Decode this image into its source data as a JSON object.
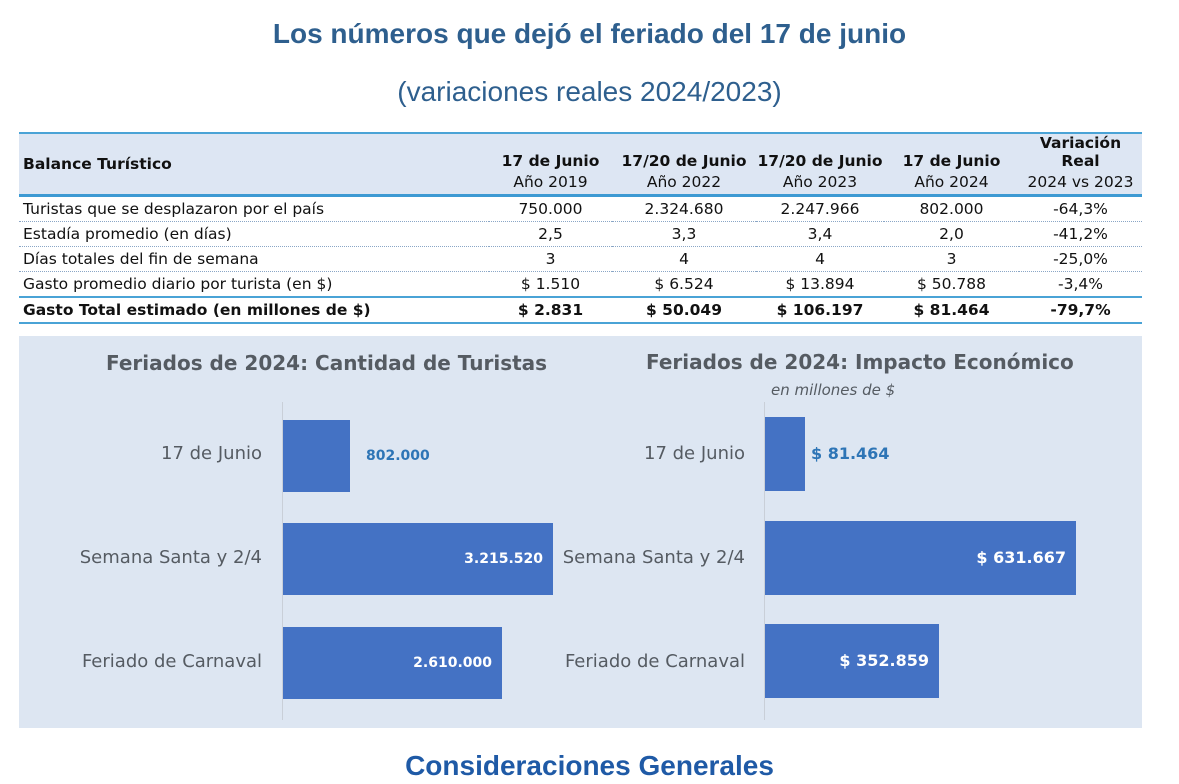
{
  "title": "Los números que dejó el feriado del 17 de junio",
  "subtitle": "(variaciones reales 2024/2023)",
  "table": {
    "row_header": "Balance Turístico",
    "columns": [
      {
        "top": "17 de Junio",
        "bottom": "Año 2019"
      },
      {
        "top": "17/20 de Junio",
        "bottom": "Año 2022"
      },
      {
        "top": "17/20 de Junio",
        "bottom": "Año 2023"
      },
      {
        "top": "17 de Junio",
        "bottom": "Año 2024"
      },
      {
        "top": "Variación Real",
        "bottom": "2024 vs 2023"
      }
    ],
    "rows": [
      {
        "label": "Turistas que se desplazaron por el país",
        "cells": [
          "750.000",
          "2.324.680",
          "2.247.966",
          "802.000",
          "-64,3%"
        ]
      },
      {
        "label": "Estadía promedio (en días)",
        "cells": [
          "2,5",
          "3,3",
          "3,4",
          "2,0",
          "-41,2%"
        ]
      },
      {
        "label": "Días totales del fin de semana",
        "cells": [
          "3",
          "4",
          "4",
          "3",
          "-25,0%"
        ]
      },
      {
        "label": "Gasto promedio diario por turista (en $)",
        "cells": [
          "$ 1.510",
          "$ 6.524",
          "$ 13.894",
          "$ 50.788",
          "-3,4%"
        ]
      },
      {
        "label": "Gasto Total estimado (en millones de $)",
        "cells": [
          "$ 2.831",
          "$ 50.049",
          "$ 106.197",
          "$ 81.464",
          "-79,7%"
        ]
      }
    ]
  },
  "chart_data": [
    {
      "type": "bar",
      "orientation": "horizontal",
      "title": "Feriados de 2024: Cantidad de Turistas",
      "categories": [
        "17 de Junio",
        "Semana Santa y 2/4",
        "Feriado de Carnaval"
      ],
      "values": [
        802000,
        3215520,
        2610000
      ],
      "labels": [
        "802.000",
        "3.215.520",
        "2.610.000"
      ],
      "xlim": [
        0,
        3215520
      ],
      "colors": {
        "bar": "#4472c4",
        "label_inside": "#ffffff",
        "label_outside": "#2e75b6"
      }
    },
    {
      "type": "bar",
      "orientation": "horizontal",
      "title": "Feriados de 2024: Impacto Económico",
      "subtitle": "en millones de $",
      "categories": [
        "17 de Junio",
        "Semana Santa y 2/4",
        "Feriado de Carnaval"
      ],
      "values": [
        81464,
        631667,
        352859
      ],
      "labels": [
        "$ 81.464",
        "$ 631.667",
        "$ 352.859"
      ],
      "xlim": [
        0,
        631667
      ],
      "colors": {
        "bar": "#4472c4",
        "label_inside": "#ffffff",
        "label_outside": "#2e75b6"
      }
    }
  ],
  "footer": "Consideraciones Generales"
}
